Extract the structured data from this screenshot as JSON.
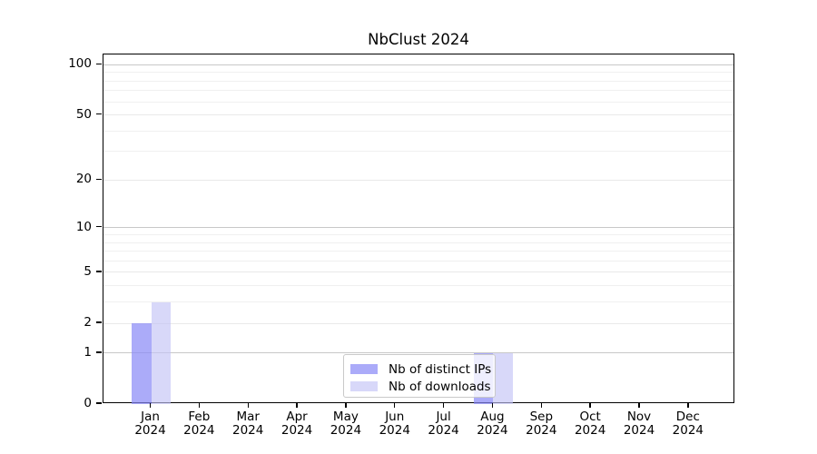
{
  "chart_data": {
    "type": "bar",
    "title": "NbClust 2024",
    "categories": [
      {
        "month": "Jan",
        "year": "2024"
      },
      {
        "month": "Feb",
        "year": "2024"
      },
      {
        "month": "Mar",
        "year": "2024"
      },
      {
        "month": "Apr",
        "year": "2024"
      },
      {
        "month": "May",
        "year": "2024"
      },
      {
        "month": "Jun",
        "year": "2024"
      },
      {
        "month": "Jul",
        "year": "2024"
      },
      {
        "month": "Aug",
        "year": "2024"
      },
      {
        "month": "Sep",
        "year": "2024"
      },
      {
        "month": "Oct",
        "year": "2024"
      },
      {
        "month": "Nov",
        "year": "2024"
      },
      {
        "month": "Dec",
        "year": "2024"
      }
    ],
    "series": [
      {
        "name": "Nb of distinct IPs",
        "color": "rgba(135,135,246,0.70)",
        "values": [
          2,
          0,
          0,
          0,
          0,
          0,
          0,
          1,
          0,
          0,
          0,
          0
        ]
      },
      {
        "name": "Nb of downloads",
        "color": "rgba(195,195,246,0.65)",
        "values": [
          3,
          0,
          0,
          0,
          0,
          0,
          0,
          1,
          0,
          0,
          0,
          0
        ]
      }
    ],
    "y_axis": {
      "scale": "log1p",
      "major_ticks": [
        0,
        1,
        2,
        5,
        10,
        20,
        50,
        100
      ],
      "minor_gridlines": [
        3,
        4,
        6,
        7,
        8,
        9,
        30,
        40,
        60,
        70,
        80,
        90
      ],
      "ylim": [
        0,
        115
      ]
    },
    "grid": "horizontal",
    "legend_position": "bottom-center",
    "colors": {
      "grid_decade": "#c8c8c8",
      "grid_major": "#e9e9e9",
      "grid_minor": "#f0f0f0",
      "axis": "#000000"
    }
  }
}
